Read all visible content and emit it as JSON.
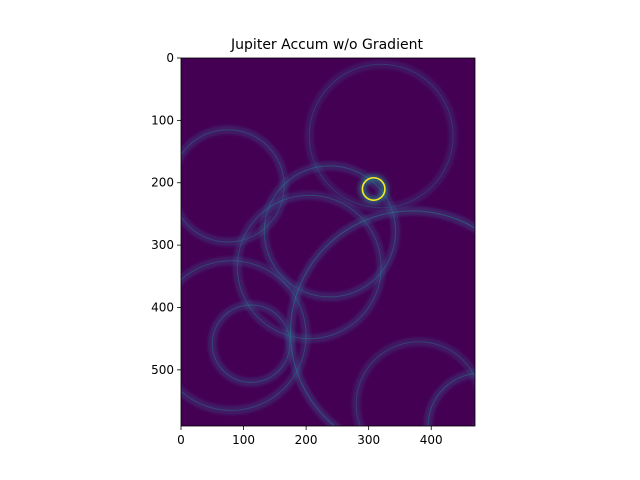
{
  "chart_data": {
    "type": "heatmap",
    "title": "Jupiter Accum w/o Gradient",
    "xlabel": "",
    "ylabel": "",
    "width": 470,
    "height": 590,
    "xlim": [
      0,
      470
    ],
    "ylim": [
      590,
      0
    ],
    "x_ticks": [
      0,
      100,
      200,
      300,
      400
    ],
    "y_ticks": [
      0,
      100,
      200,
      300,
      400,
      500
    ],
    "colormap": "viridis",
    "grid": false,
    "colors": {
      "background": "#440154",
      "low": "#472d7b",
      "mid": "#3b528b",
      "high": "#21918c",
      "peak": "#fde725"
    },
    "circles": [
      {
        "cx": 320,
        "cy": 125,
        "r": 115,
        "intensity": 0.35
      },
      {
        "cx": 75,
        "cy": 205,
        "r": 90,
        "intensity": 0.45
      },
      {
        "cx": 238,
        "cy": 278,
        "r": 105,
        "intensity": 0.5
      },
      {
        "cx": 205,
        "cy": 335,
        "r": 115,
        "intensity": 0.45
      },
      {
        "cx": 80,
        "cy": 445,
        "r": 120,
        "intensity": 0.45
      },
      {
        "cx": 112,
        "cy": 458,
        "r": 62,
        "intensity": 0.5
      },
      {
        "cx": 370,
        "cy": 440,
        "r": 195,
        "intensity": 0.55
      },
      {
        "cx": 380,
        "cy": 555,
        "r": 100,
        "intensity": 0.4
      },
      {
        "cx": 480,
        "cy": 590,
        "r": 85,
        "intensity": 0.5
      },
      {
        "cx": 308,
        "cy": 210,
        "r": 18,
        "intensity": 1.0
      }
    ]
  }
}
